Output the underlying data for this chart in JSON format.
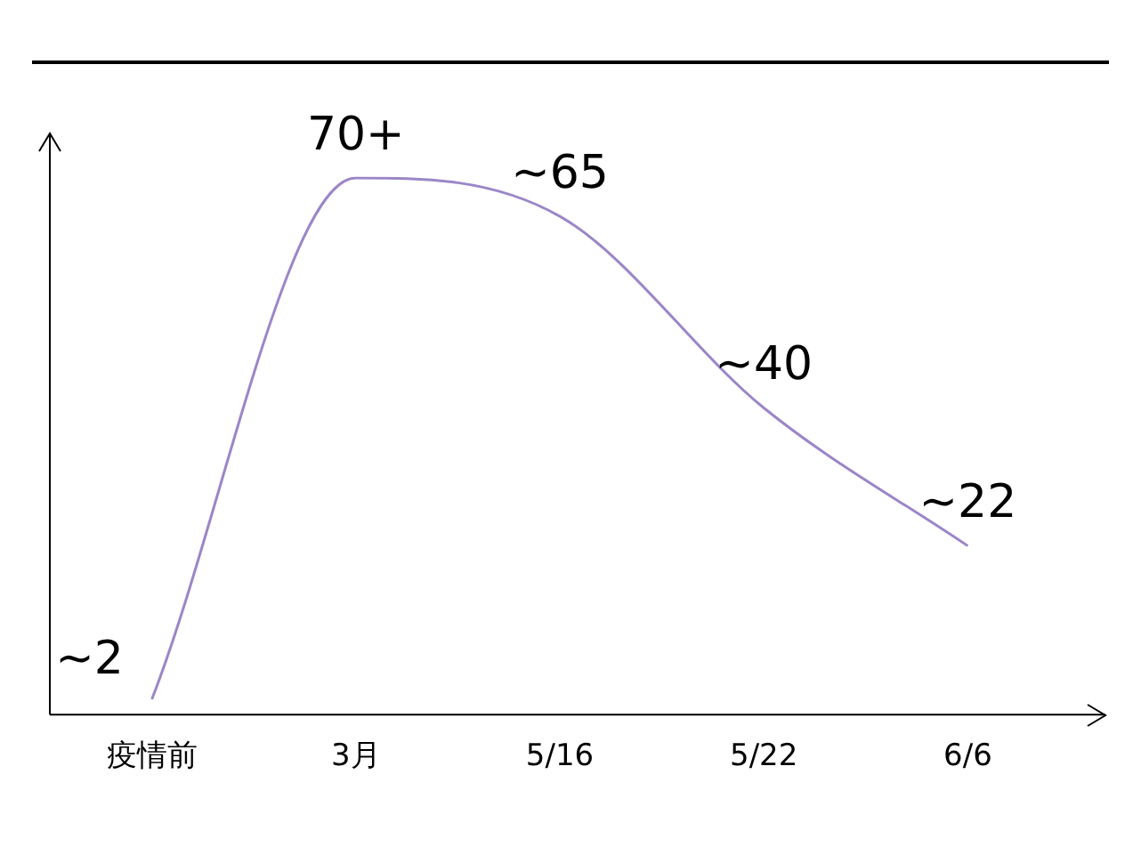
{
  "chart_data": {
    "type": "line",
    "categories": [
      "疫情前",
      "3月",
      "5/16",
      "5/22",
      "6/6"
    ],
    "series": [
      {
        "color": "#9b86c8",
        "values": [
          2,
          70,
          65,
          40,
          22
        ],
        "value_labels": [
          "~2",
          "70+",
          "~65",
          "~40",
          "~22"
        ]
      }
    ],
    "grid": false,
    "legend": false,
    "marker": "none",
    "line_style": "solid"
  }
}
